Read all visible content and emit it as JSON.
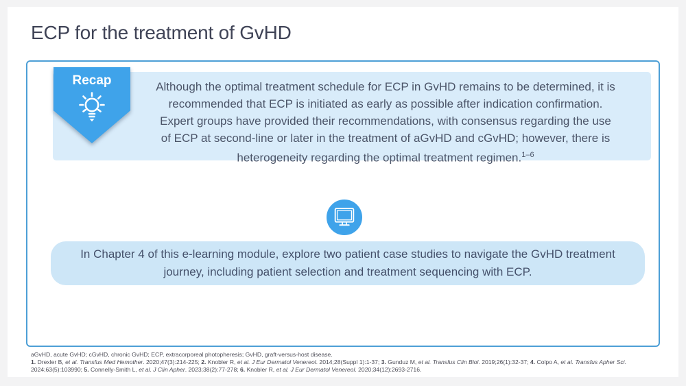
{
  "slide": {
    "title": "ECP for the treatment of GvHD"
  },
  "recap": {
    "badge_label": "Recap",
    "lines": [
      "Although the optimal treatment schedule for ECP in GvHD remains to be determined, it is",
      "recommended that ECP is initiated as early as possible after indication confirmation.",
      "Expert groups have provided their recommendations, with consensus regarding the use",
      "of ECP at second-line or later in the treatment of aGvHD and cGvHD; however, there is",
      "heterogeneity regarding the optimal treatment regimen."
    ],
    "citation_superscript": "1–6"
  },
  "chapter_callout": {
    "lines": [
      "In Chapter 4 of this e-learning module, explore two patient case studies to navigate the GvHD treatment",
      "journey, including patient selection and treatment sequencing with ECP."
    ]
  },
  "icons": {
    "badge_icon": "lightbulb-icon",
    "callout_icon": "monitor-icon"
  },
  "colors": {
    "accent_blue": "#3fa3ea",
    "recap_panel_blue": "#d9ecfa",
    "callout_panel_blue": "#cde6f7",
    "box_border_blue": "#4d9fd6",
    "body_text": "#4b5468",
    "title_text": "#3f4356"
  },
  "footer": {
    "abbreviations": "aGvHD, acute GvHD; cGvHD, chronic GvHD; ECP, extracorporeal photopheresis; GvHD, graft-versus-host disease.",
    "reference_lines": [
      [
        {
          "t": "1. ",
          "b": true
        },
        {
          "t": "Drexler B, "
        },
        {
          "t": "et al. ",
          "i": true
        },
        {
          "t": "Transfus Med Hemother",
          "i": true
        },
        {
          "t": ". 2020;47(3):214-225; "
        },
        {
          "t": "2. ",
          "b": true
        },
        {
          "t": "Knobler R, "
        },
        {
          "t": "et al. ",
          "i": true
        },
        {
          "t": "J Eur Dermatol Venereol",
          "i": true
        },
        {
          "t": ". 2014;28(Suppl 1):1-37; "
        },
        {
          "t": "3. ",
          "b": true
        },
        {
          "t": "Gunduz M, "
        },
        {
          "t": "et al. ",
          "i": true
        },
        {
          "t": "Transfus Clin Biol",
          "i": true
        },
        {
          "t": ". 2019;26(1):32-37; "
        },
        {
          "t": "4. ",
          "b": true
        },
        {
          "t": "Colpo A, "
        },
        {
          "t": "et al. ",
          "i": true
        },
        {
          "t": "Transfus Apher Sci",
          "i": true
        },
        {
          "t": "."
        }
      ],
      [
        {
          "t": "2024;63(5):103990; "
        },
        {
          "t": "5. ",
          "b": true
        },
        {
          "t": "Connelly-Smith L, "
        },
        {
          "t": "et al. ",
          "i": true
        },
        {
          "t": "J Clin Apher",
          "i": true
        },
        {
          "t": ". 2023;38(2):77-278; "
        },
        {
          "t": "6. ",
          "b": true
        },
        {
          "t": "Knobler R, "
        },
        {
          "t": "et al. ",
          "i": true
        },
        {
          "t": "J Eur Dermatol Venereol",
          "i": true
        },
        {
          "t": ". 2020;34(12):2693-2716."
        }
      ]
    ]
  }
}
